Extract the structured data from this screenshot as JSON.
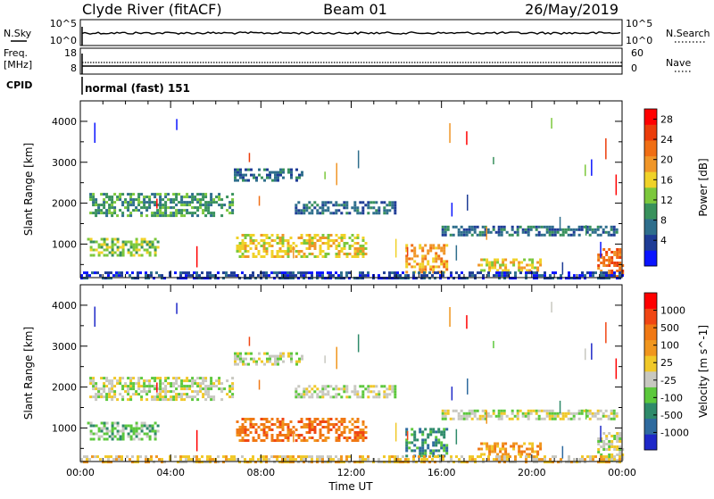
{
  "header": {
    "station": "Clyde River (fitACF)",
    "beam": "Beam 01",
    "date": "26/May/2019"
  },
  "top_panel": {
    "left_label": "N.Sky",
    "left_ticks": [
      "10^5",
      "10^0"
    ],
    "right_label": "N.Search",
    "right_ticks": [
      "10^5",
      "10^0"
    ]
  },
  "freq_panel": {
    "left_label_1": "Freq.",
    "left_label_2": "[MHz]",
    "left_ticks": [
      "18",
      "8"
    ],
    "right_label": "Nave",
    "right_ticks": [
      "60",
      "0"
    ]
  },
  "cpid": {
    "label": "CPID",
    "text": "normal (fast) 151"
  },
  "chart_data": [
    {
      "type": "heatmap",
      "ylabel": "Slant Range [km]",
      "xlabel": "Time UT",
      "x_ticks": [
        "00:00",
        "04:00",
        "08:00",
        "12:00",
        "16:00",
        "20:00",
        "00:00"
      ],
      "x_range_hours": [
        0,
        24
      ],
      "y_ticks": [
        1000,
        2000,
        3000,
        4000
      ],
      "ylim": [
        180,
        4500
      ],
      "colorbar": {
        "label": "Power [dB]",
        "tick_labels": [
          "4",
          "8",
          "12",
          "16",
          "20",
          "24",
          "28"
        ],
        "colors": [
          "#0a14ff",
          "#1e3c96",
          "#2e6e8c",
          "#38915c",
          "#7cc83c",
          "#f0d228",
          "#f09628",
          "#f06e14",
          "#eb3c0a",
          "#ff0000"
        ]
      },
      "echo_regions": [
        {
          "t0": 0.4,
          "t1": 6.8,
          "r0": 1700,
          "r1": 2250,
          "level": 3
        },
        {
          "t0": 6.8,
          "t1": 9.8,
          "r0": 2550,
          "r1": 2850,
          "level": 2
        },
        {
          "t0": 9.5,
          "t1": 14.0,
          "r0": 1750,
          "r1": 2050,
          "level": 2
        },
        {
          "t0": 16.0,
          "t1": 23.8,
          "r0": 1250,
          "r1": 1450,
          "level": 2
        },
        {
          "t0": 0.3,
          "t1": 3.5,
          "r0": 700,
          "r1": 1150,
          "level": 4
        },
        {
          "t0": 6.9,
          "t1": 12.6,
          "r0": 700,
          "r1": 1250,
          "level": 5
        },
        {
          "t0": 14.4,
          "t1": 16.2,
          "r0": 300,
          "r1": 1000,
          "level": 6
        },
        {
          "t0": 17.6,
          "t1": 20.4,
          "r0": 350,
          "r1": 650,
          "level": 5
        },
        {
          "t0": 22.9,
          "t1": 24.0,
          "r0": 200,
          "r1": 900,
          "level": 7
        },
        {
          "t0": 0.0,
          "t1": 24.0,
          "r0": 180,
          "r1": 330,
          "level": 1
        }
      ]
    },
    {
      "type": "heatmap",
      "ylabel": "Slant Range [km]",
      "xlabel": "Time UT",
      "x_ticks": [
        "00:00",
        "04:00",
        "08:00",
        "12:00",
        "16:00",
        "20:00",
        "00:00"
      ],
      "x_range_hours": [
        0,
        24
      ],
      "y_ticks": [
        1000,
        2000,
        3000,
        4000
      ],
      "ylim": [
        180,
        4500
      ],
      "colorbar": {
        "label": "Velocity [m s^-1]",
        "tick_labels": [
          "1000",
          "500",
          "100",
          "25",
          "-25",
          "-100",
          "-500",
          "-1000"
        ],
        "colors": [
          "#1e28c8",
          "#2e6a9e",
          "#2e8a6a",
          "#5cc83c",
          "#c8c8c0",
          "#f0c828",
          "#f0961e",
          "#f07814",
          "#f04614",
          "#ff0000"
        ]
      },
      "echo_regions": [
        {
          "t0": 0.4,
          "t1": 6.8,
          "r0": 1700,
          "r1": 2250,
          "level": 4
        },
        {
          "t0": 6.8,
          "t1": 9.8,
          "r0": 2550,
          "r1": 2850,
          "level": 4
        },
        {
          "t0": 9.5,
          "t1": 14.0,
          "r0": 1750,
          "r1": 2050,
          "level": 4
        },
        {
          "t0": 16.0,
          "t1": 23.8,
          "r0": 1250,
          "r1": 1450,
          "level": 4
        },
        {
          "t0": 0.3,
          "t1": 3.5,
          "r0": 700,
          "r1": 1150,
          "level": 3
        },
        {
          "t0": 6.9,
          "t1": 12.6,
          "r0": 700,
          "r1": 1250,
          "level": 7
        },
        {
          "t0": 14.4,
          "t1": 16.2,
          "r0": 300,
          "r1": 1000,
          "level": 2
        },
        {
          "t0": 17.6,
          "t1": 20.4,
          "r0": 350,
          "r1": 650,
          "level": 6
        },
        {
          "t0": 22.9,
          "t1": 24.0,
          "r0": 200,
          "r1": 900,
          "level": 4
        },
        {
          "t0": 0.0,
          "t1": 24.0,
          "r0": 180,
          "r1": 330,
          "level": 5
        }
      ]
    }
  ]
}
